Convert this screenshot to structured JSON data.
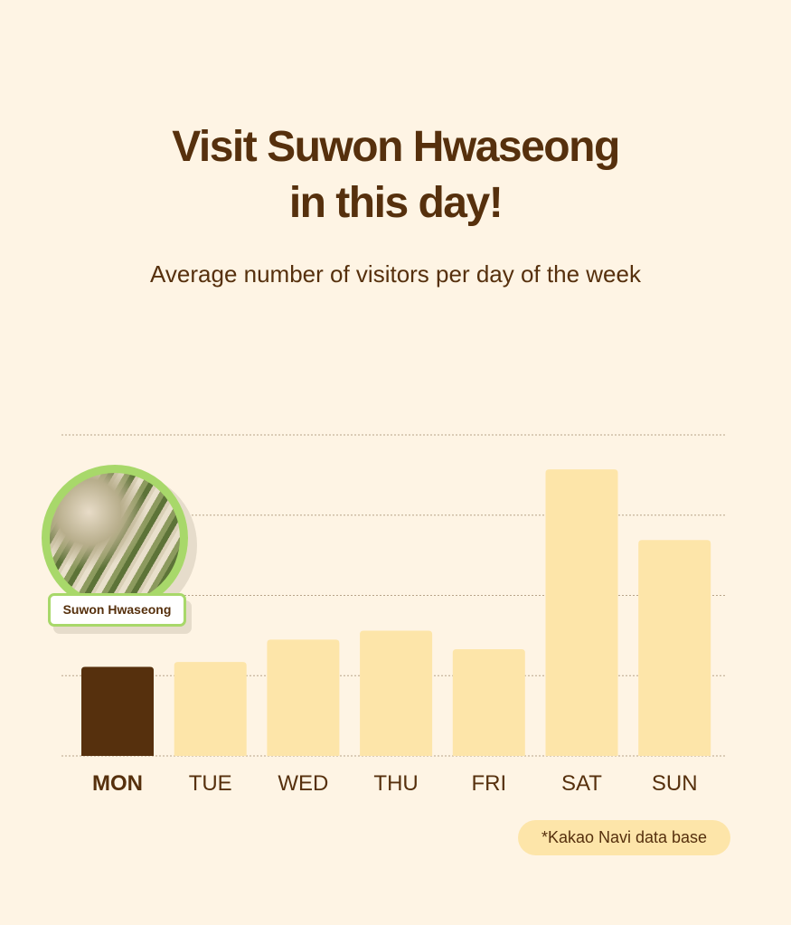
{
  "header": {
    "title_line1": "Visit Suwon Hwaseong",
    "title_line2": "in this day!",
    "subtitle": "Average number of visitors per day of the week"
  },
  "highlight": {
    "label": "Suwon Hwaseong",
    "image": "silver grass photo",
    "ring_color": "#a8d86a"
  },
  "footnote": "*Kakao Navi data base",
  "chart_data": {
    "type": "bar",
    "title": "",
    "xlabel": "",
    "ylabel": "",
    "categories": [
      "MON",
      "TUE",
      "WED",
      "THU",
      "FRI",
      "SAT",
      "SUN"
    ],
    "values": [
      1.11,
      1.17,
      1.45,
      1.56,
      1.33,
      3.57,
      2.69
    ],
    "ylim": [
      0,
      4
    ],
    "grid": true,
    "highlighted_category": "MON",
    "colors": {
      "bar": "#fde5a9",
      "highlight": "#56300d",
      "grid": "#b8a48a"
    }
  }
}
